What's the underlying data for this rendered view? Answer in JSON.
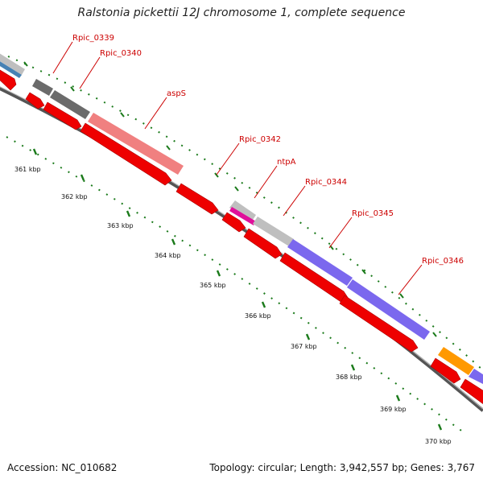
{
  "title": "Ralstonia pickettii 12J chromosome 1, complete sequence",
  "footer": {
    "accession": "Accession: NC_010682",
    "topology": "Topology: circular; Length: 3,942,557 bp; Genes: 3,767"
  },
  "colors": {
    "cds_red": "#ee0000",
    "hypothetical_gray": "#bfbfbf",
    "dark_gray": "#6b6b6b",
    "salmon": "#f08080",
    "purple": "#7b68ee",
    "magenta": "#e0109a",
    "orange": "#ff9900",
    "blue": "#4682b4",
    "tick_green": "#1a7a1a",
    "label_red": "#cc0000"
  },
  "scale_labels": [
    "361 kbp",
    "362 kbp",
    "363 kbp",
    "364 kbp",
    "365 kbp",
    "366 kbp",
    "367 kbp",
    "368 kbp",
    "369 kbp",
    "370 kbp"
  ],
  "gene_labels": [
    "Rpic_0339",
    "Rpic_0340",
    "aspS",
    "Rpic_0342",
    "ntpA",
    "Rpic_0344",
    "Rpic_0345",
    "Rpic_0346"
  ]
}
